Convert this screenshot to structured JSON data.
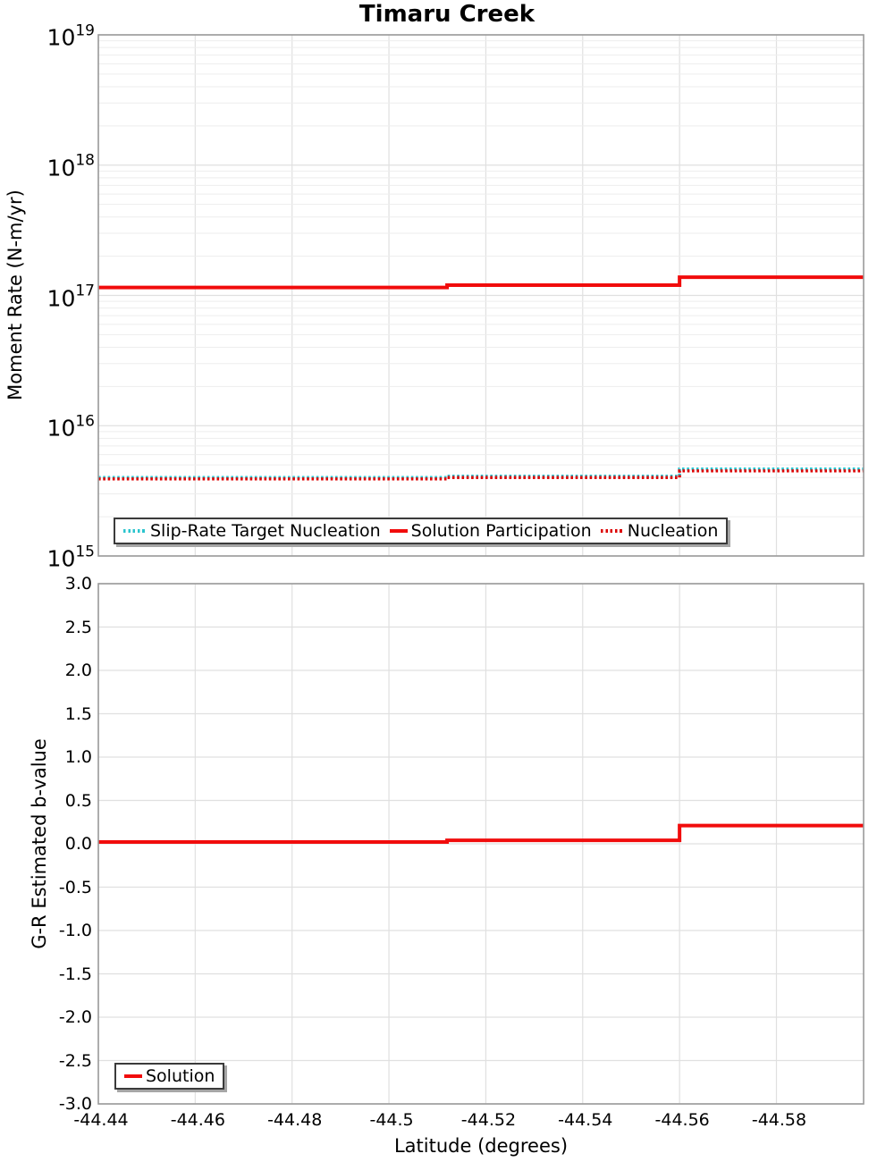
{
  "figure_title": "Timaru Creek",
  "colors": {
    "solution_red": "#f10c0c",
    "nucleation_red": "#dd0404",
    "slip_rate_cyan": "#2bc4ce",
    "grid_major": "#e0e0e0",
    "grid_minor": "#ededed",
    "axis_border": "#9a9a9a",
    "legend_border": "#3b3b3b",
    "legend_shadow": "#a6a6a6",
    "text": "#000000"
  },
  "chart_data": [
    {
      "type": "line",
      "title": "Timaru Creek",
      "ylabel": "Moment Rate (N-m/yr)",
      "yscale": "log",
      "ylim": [
        1000000000000000.0,
        1e+19
      ],
      "xlim": [
        -44.44,
        -44.598
      ],
      "x_axis_reversed_descending": true,
      "grid": "major+minor horizontal, major vertical",
      "y_tick_exponents": [
        19,
        18,
        17,
        16,
        15
      ],
      "legend": {
        "position": "lower-left",
        "entries": [
          {
            "label": "Slip-Rate Target Nucleation",
            "color": "#2bc4ce",
            "style": "dotted"
          },
          {
            "label": "Solution Participation",
            "color": "#f10c0c",
            "style": "solid"
          },
          {
            "label": "Nucleation",
            "color": "#dd0404",
            "style": "dotted"
          }
        ]
      },
      "series": [
        {
          "name": "Slip-Rate Target Nucleation",
          "color": "#2bc4ce",
          "style": "dotted",
          "width": 3.4,
          "x": [
            -44.44,
            -44.512,
            -44.512,
            -44.56,
            -44.56,
            -44.598
          ],
          "y": [
            4000000000000000.0,
            4000000000000000.0,
            4100000000000000.0,
            4100000000000000.0,
            4650000000000000.0,
            4650000000000000.0
          ]
        },
        {
          "name": "Nucleation",
          "color": "#dd0404",
          "style": "dotted",
          "width": 3.4,
          "x": [
            -44.44,
            -44.512,
            -44.512,
            -44.56,
            -44.56,
            -44.598
          ],
          "y": [
            3900000000000000.0,
            3900000000000000.0,
            4000000000000000.0,
            4000000000000000.0,
            4500000000000000.0,
            4500000000000000.0
          ]
        },
        {
          "name": "Solution Participation",
          "color": "#f10c0c",
          "style": "solid",
          "width": 4,
          "x": [
            -44.44,
            -44.512,
            -44.512,
            -44.56,
            -44.56,
            -44.598
          ],
          "y": [
            1.15e+17,
            1.15e+17,
            1.2e+17,
            1.2e+17,
            1.38e+17,
            1.38e+17
          ]
        }
      ]
    },
    {
      "type": "line",
      "ylabel": "G-R Estimated b-value",
      "xlabel": "Latitude (degrees)",
      "ylim": [
        -3.0,
        3.0
      ],
      "xlim": [
        -44.44,
        -44.598
      ],
      "grid": "major horizontal + major vertical",
      "x_ticks": {
        "values": [
          -44.44,
          -44.46,
          -44.48,
          -44.5,
          -44.52,
          -44.54,
          -44.56,
          -44.58
        ],
        "labels": [
          "-44.44",
          "-44.46",
          "-44.48",
          "-44.5",
          "-44.52",
          "-44.54",
          "-44.56",
          "-44.58"
        ]
      },
      "y_ticks": {
        "values": [
          3.0,
          2.5,
          2.0,
          1.5,
          1.0,
          0.5,
          0.0,
          -0.5,
          -1.0,
          -1.5,
          -2.0,
          -2.5,
          -3.0
        ],
        "labels": [
          "3.0",
          "2.5",
          "2.0",
          "1.5",
          "1.0",
          "0.5",
          "0.0",
          "-0.5",
          "-1.0",
          "-1.5",
          "-2.0",
          "-2.5",
          "-3.0"
        ]
      },
      "legend": {
        "position": "lower-left",
        "entries": [
          {
            "label": "Solution",
            "color": "#f10c0c",
            "style": "solid"
          }
        ]
      },
      "series": [
        {
          "name": "Solution",
          "color": "#f10c0c",
          "style": "solid",
          "width": 4,
          "x": [
            -44.44,
            -44.512,
            -44.512,
            -44.56,
            -44.56,
            -44.598
          ],
          "y": [
            0.02,
            0.02,
            0.04,
            0.04,
            0.21,
            0.21
          ]
        }
      ]
    }
  ]
}
